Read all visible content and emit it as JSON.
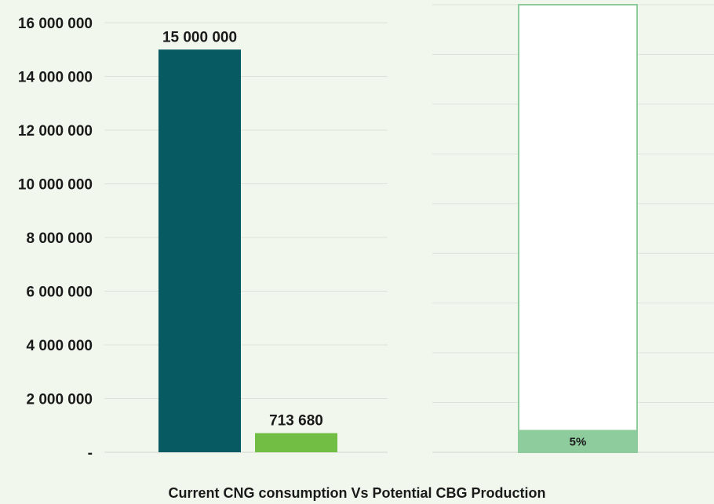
{
  "chart_data": [
    {
      "type": "bar",
      "categories": [
        "Current CNG consumption",
        "Potential CBG Production"
      ],
      "values": [
        15000000,
        713680
      ],
      "data_labels": [
        "15 000 000",
        "713 680"
      ],
      "ylim": [
        0,
        16000000
      ],
      "yticks": [
        "-",
        "2 000 000",
        "4 000 000",
        "6 000 000",
        "8 000 000",
        "10 000 000",
        "12 000 000",
        "14 000 000",
        "16 000 000"
      ],
      "colors": [
        "#085a62",
        "#72bd43"
      ],
      "grid": true
    },
    {
      "type": "bar",
      "stacked": true,
      "percent_share": 5,
      "data_label": "5%",
      "colors": {
        "filled": "#8ecc9e",
        "remainder": "#ffffff",
        "outline": "#8ecc9e"
      },
      "grid": true
    }
  ],
  "caption": "Current CNG consumption Vs Potential CBG Production"
}
